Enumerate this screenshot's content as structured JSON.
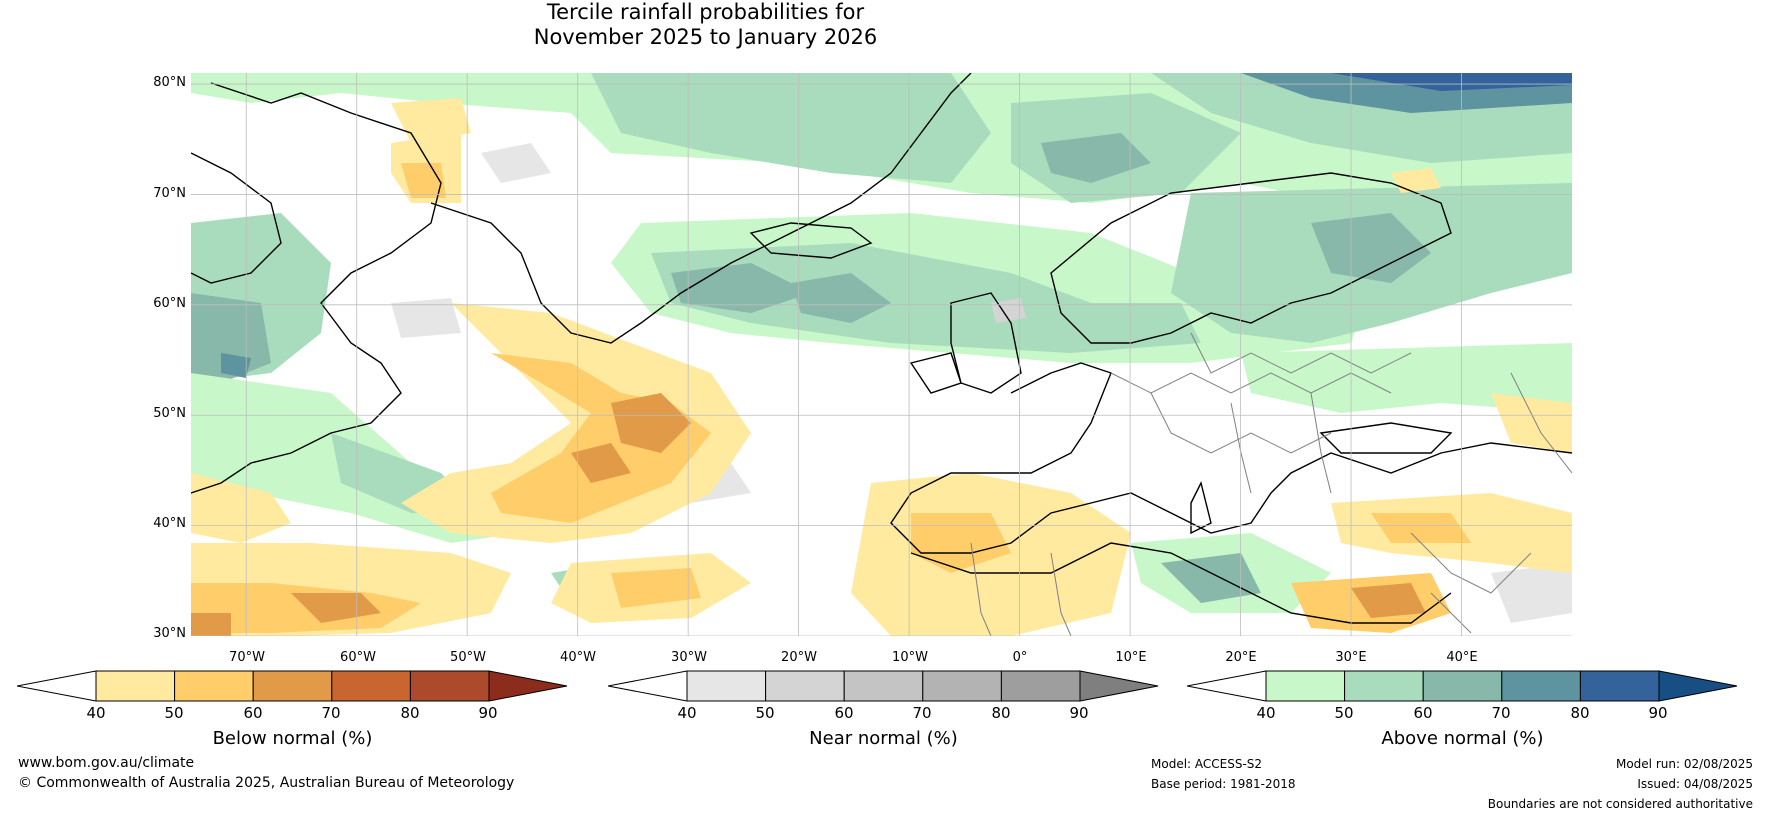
{
  "title": {
    "line1": "Tercile rainfall probabilities for",
    "line2": "November 2025 to January 2026"
  },
  "map": {
    "lat_labels": [
      "80°N",
      "70°N",
      "60°N",
      "50°N",
      "40°N",
      "30°N"
    ],
    "lon_labels": [
      "70°W",
      "60°W",
      "50°W",
      "40°W",
      "30°W",
      "20°W",
      "10°W",
      "0°",
      "10°E",
      "20°E",
      "30°E",
      "40°E"
    ],
    "extent": {
      "lon_min": -75,
      "lon_max": 50,
      "lat_min": 30,
      "lat_max": 81
    },
    "colors": {
      "coastline": "#000000",
      "borders": "#808080",
      "gridlines": "#bdbdbd"
    }
  },
  "colorbars": [
    {
      "title": "Below normal (%)",
      "ticks": [
        "40",
        "50",
        "60",
        "70",
        "80",
        "90"
      ],
      "colors": [
        "#ffffff",
        "#ffeaa0",
        "#ffcd6a",
        "#e09a48",
        "#c9652f",
        "#ad4a2b",
        "#8c2c1c"
      ]
    },
    {
      "title": "Near normal (%)",
      "ticks": [
        "40",
        "50",
        "60",
        "70",
        "80",
        "90"
      ],
      "colors": [
        "#ffffff",
        "#e6e6e6",
        "#d4d4d4",
        "#c4c4c4",
        "#b3b3b3",
        "#9e9e9e",
        "#7f7f7f"
      ]
    },
    {
      "title": "Above normal (%)",
      "ticks": [
        "40",
        "50",
        "60",
        "70",
        "80",
        "90"
      ],
      "colors": [
        "#ffffff",
        "#c8f7c9",
        "#a9dcbc",
        "#87b8a9",
        "#5e93a0",
        "#33639a",
        "#174f85"
      ]
    }
  ],
  "footer": {
    "website": "www.bom.gov.au/climate",
    "copyright": "© Commonwealth of Australia 2025, Australian Bureau of Meteorology",
    "model": "Model: ACCESS-S2",
    "base_period": "Base period: 1981-2018",
    "model_run": "Model run: 02/08/2025",
    "issued": "Issued: 04/08/2025",
    "disclaimer": "Boundaries are not considered authoritative"
  }
}
